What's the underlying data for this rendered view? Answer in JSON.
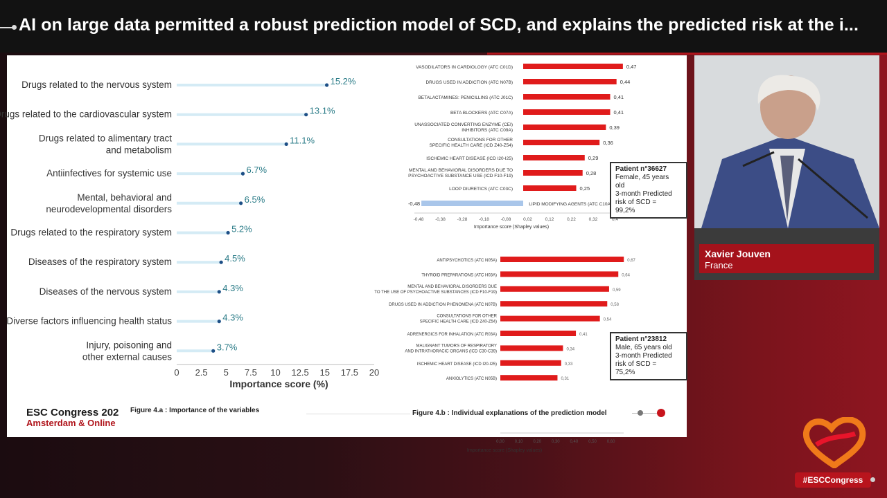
{
  "header": {
    "title": "AI on large data permitted a robust prediction model of SCD, and explains the predicted risk at the i..."
  },
  "colors": {
    "accent_red": "#b0151c",
    "teal": "#2a7b87",
    "bar_red": "#e01b1b",
    "bar_blue": "#a9c6ea"
  },
  "chart_data": [
    {
      "type": "bar",
      "orientation": "horizontal",
      "title": "",
      "categories": [
        "Drugs related to the nervous system",
        "Drugs related to the cardiovascular system",
        "Drugs related to alimentary tract|and metabolism",
        "Antiinfectives for systemic use",
        "Mental, behavioral and|neurodevelopmental disorders",
        "Drugs related to the respiratory system",
        "Diseases of the respiratory system",
        "Diseases of the nervous system",
        "Diverse factors influencing health status",
        "Injury, poisoning and|other external causes"
      ],
      "values": [
        15.2,
        13.1,
        11.1,
        6.7,
        6.5,
        5.2,
        4.5,
        4.3,
        4.3,
        3.7
      ],
      "value_labels": [
        "15.2%",
        "13.1%",
        "11.1%",
        "6.7%",
        "6.5%",
        "5.2%",
        "4.5%",
        "4.3%",
        "4.3%",
        "3.7%"
      ],
      "xlabel": "Importance score (%)",
      "xticks": [
        "0",
        "2.5",
        "5",
        "7.5",
        "10",
        "12.5",
        "15",
        "17.5",
        "20"
      ],
      "xlim": [
        0,
        20
      ]
    },
    {
      "type": "bar",
      "orientation": "horizontal",
      "title": "",
      "categories": [
        "VASODILATORS IN CARDIOLOGY (ATC C01D)",
        "DRUGS USED IN ADDICTION (ATC N07B)",
        "BETALACTAMINES: PENICILLINS (ATC J01C)",
        "BETA BLOCKERS (ATC C07A)",
        "UNASSOCIATED CONVERTING ENZYME (CEI)|INHIBITORS (ATC C09A)",
        "CONSULTATIONS FOR OTHER|SPECIFIC HEALTH CARE (ICD Z40-Z54)",
        "ISCHEMIC HEART DISEASE (ICD I20-I25)",
        "MENTAL AND BEHAVIORAL DISORDERS DUE TO|PSYCHOACTIVE SUBSTANCE USE (ICD F10-F19)",
        "LOOP DIURETICS (ATC C03C)",
        "LIPID MODIFYING AGENTS (ATC C10A)"
      ],
      "values": [
        0.47,
        0.44,
        0.41,
        0.41,
        0.39,
        0.36,
        0.29,
        0.28,
        0.25,
        -0.48
      ],
      "value_labels": [
        "0,47",
        "0,44",
        "0,41",
        "0,41",
        "0,39",
        "0,36",
        "0,29",
        "0,28",
        "0,25",
        "-0,48"
      ],
      "xlabel": "Importance score (Shapley values)",
      "xticks": [
        "-0,48",
        "-0,38",
        "-0,28",
        "-0,18",
        "-0,08",
        "0,02",
        "0,12",
        "0,22",
        "0,32",
        "0,4"
      ],
      "xlim": [
        -0.48,
        0.5
      ]
    },
    {
      "type": "bar",
      "orientation": "horizontal",
      "title": "",
      "categories": [
        "ANTIPSYCHOTICS (ATC N05A)",
        "THYROID PREPARATIONS (ATC H03A)",
        "MENTAL AND BEHAVIORAL DISORDERS DUE|TO THE USE OF PSYCHOACTIVE SUBSTANCES (ICD F10-F19)",
        "DRUGS USED IN ADDICTION PHENOMENA (ATC N07B)",
        "CONSULTATIONS FOR OTHER|SPECIFIC HEALTH CARE (ICD Z40-Z54)",
        "ADRENERGICS FOR INHALATION (ATC R03A)",
        "MALIGNANT TUMORS OF RESPIRATORY|AND INTRATHORACIC ORGANS (ICD C30-C39)",
        "ISCHEMIC HEART DISEASE (ICD I20-I25)",
        "ANXIOLYTICS (ATC N05B)"
      ],
      "values": [
        0.67,
        0.64,
        0.59,
        0.58,
        0.54,
        0.41,
        0.34,
        0.33,
        0.31
      ],
      "value_labels": [
        "0,67",
        "0,64",
        "0,59",
        "0,58",
        "0,54",
        "0,41",
        "0,34",
        "0,33",
        "0,31"
      ],
      "xlabel": "Importance score (Shapley values)",
      "xticks": [
        "0,00",
        "0,10",
        "0,20",
        "0,30",
        "0,40",
        "0,50",
        "0,60"
      ],
      "xlim": [
        0,
        0.67
      ]
    }
  ],
  "patient1": {
    "title": "Patient n°36627",
    "lines": [
      "Female, 45 years",
      "old",
      "3-month Predicted",
      "risk of SCD =",
      "99,2%"
    ]
  },
  "patient2": {
    "title": "Patient n°23812",
    "lines": [
      "Male, 65 years old",
      "3-month Predicted",
      "risk of SCD =",
      "75,2%"
    ]
  },
  "footer": {
    "congress": "ESC Congress 202",
    "location": "Amsterdam & Online",
    "fig_a": "Figure 4.a  : Importance of the variables",
    "fig_b": "Figure 4.b : Individual explanations of the prediction model"
  },
  "speaker": {
    "name": "Xavier Jouven",
    "country": "France"
  },
  "hashtag": "#ESCCongress"
}
